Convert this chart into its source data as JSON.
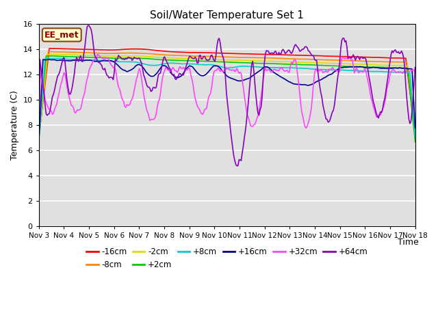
{
  "title": "Soil/Water Temperature Set 1",
  "xlabel": "Time",
  "ylabel": "Temperature (C)",
  "ylim": [
    0,
    16
  ],
  "yticks": [
    0,
    2,
    4,
    6,
    8,
    10,
    12,
    14,
    16
  ],
  "x_labels": [
    "Nov 3",
    "Nov 4",
    "Nov 5",
    "Nov 6",
    "Nov 7",
    "Nov 8",
    "Nov 9",
    "Nov 10",
    "Nov 11",
    "Nov 12",
    "Nov 13",
    "Nov 14",
    "Nov 15",
    "Nov 16",
    "Nov 17",
    "Nov 18"
  ],
  "annotation_text": "EE_met",
  "annotation_color": "#8B0000",
  "background_color": "#e0e0e0",
  "series": [
    {
      "label": "-16cm",
      "color": "#ff0000"
    },
    {
      "label": "-8cm",
      "color": "#ff8800"
    },
    {
      "label": "-2cm",
      "color": "#dddd00"
    },
    {
      "label": "+2cm",
      "color": "#00cc00"
    },
    {
      "label": "+8cm",
      "color": "#00cccc"
    },
    {
      "label": "+16cm",
      "color": "#000099"
    },
    {
      "label": "+32cm",
      "color": "#ff44ff"
    },
    {
      "label": "+64cm",
      "color": "#8800bb"
    }
  ]
}
